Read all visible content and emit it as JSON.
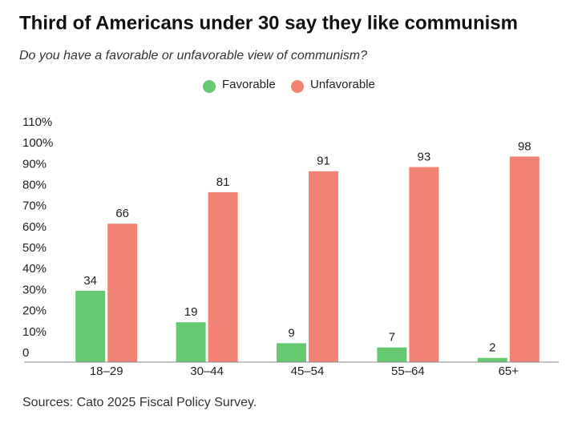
{
  "chart_data": {
    "type": "bar",
    "title": "Third of Americans under 30 say they like communism",
    "subtitle": "Do you have a favorable or unfavorable view of communism?",
    "source": "Sources: Cato 2025 Fiscal Policy Survey.",
    "categories": [
      "18–29",
      "30–44",
      "45–54",
      "55–64",
      "65+"
    ],
    "series": [
      {
        "name": "Favorable",
        "color": "#66c86f",
        "values": [
          34,
          19,
          9,
          7,
          2
        ]
      },
      {
        "name": "Unfavorable",
        "color": "#f28374",
        "values": [
          66,
          81,
          91,
          93,
          98
        ]
      }
    ],
    "ylim": [
      0,
      110
    ],
    "yticks": [
      0,
      {
        "value": 10,
        "label": "10%"
      },
      {
        "value": 20,
        "label": "20%"
      },
      {
        "value": 30,
        "label": "30%"
      },
      {
        "value": 40,
        "label": "40%"
      },
      {
        "value": 50,
        "label": "50%"
      },
      {
        "value": 60,
        "label": "60%"
      },
      {
        "value": 70,
        "label": "70%"
      },
      {
        "value": 80,
        "label": "80%"
      },
      {
        "value": 90,
        "label": "90%"
      },
      {
        "value": 100,
        "label": "100%"
      },
      {
        "value": 110,
        "label": "110%"
      }
    ],
    "grid": false
  }
}
